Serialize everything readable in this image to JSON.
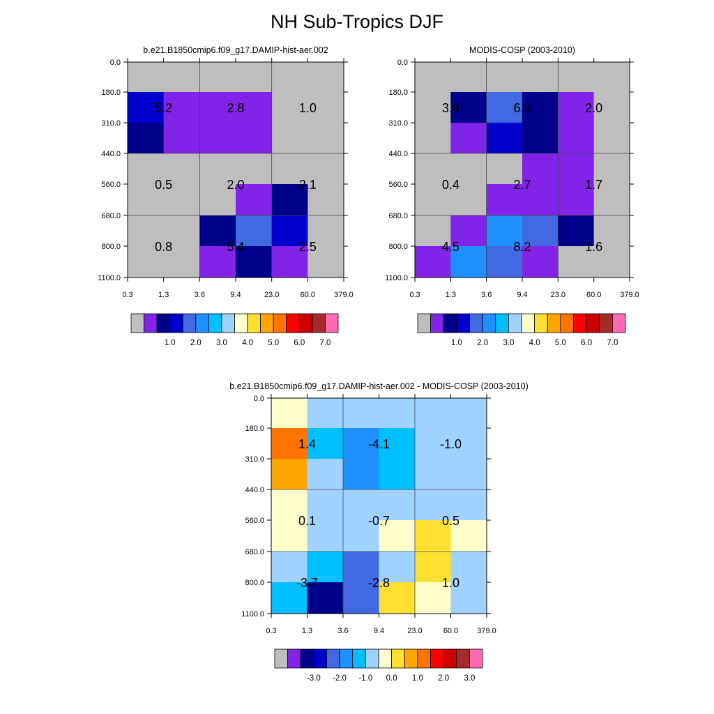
{
  "title": "NH Sub-Tropics DJF",
  "palette": {
    "gray": "#bebebe",
    "c0": "#8224e7",
    "c1": "#00008b",
    "c2": "#0000cd",
    "c3": "#4169e1",
    "c4": "#1e90ff",
    "c5": "#00bfff",
    "c6": "#a0d2ff",
    "c7": "#ffffcc",
    "c8": "#ffe031",
    "c9": "#ffa500",
    "c10": "#ff7400",
    "c11": "#ff0000",
    "c12": "#cd0000",
    "c13": "#a52a2a",
    "c14": "#ff69b4"
  },
  "colorbar_colors": [
    "gray",
    "c0",
    "c1",
    "c2",
    "c3",
    "c4",
    "c5",
    "c6",
    "c7",
    "c8",
    "c9",
    "c10",
    "c11",
    "c12",
    "c13",
    "c14"
  ],
  "chart_data": [
    {
      "type": "heatmap",
      "title": "b.e21.B1850cmip6.f09_g17.DAMIP-hist-aer.002",
      "x_ticks": [
        "0.3",
        "1.3",
        "3.6",
        "9.4",
        "23.0",
        "60.0",
        "379.0"
      ],
      "y_ticks": [
        "0.0",
        "180.0",
        "310.0",
        "440.0",
        "560.0",
        "680.0",
        "800.0",
        "1100.0"
      ],
      "cells": [
        [
          "gray",
          "gray",
          "gray",
          "gray",
          "gray",
          "gray"
        ],
        [
          "c2",
          "c0",
          "c0",
          "c0",
          "gray",
          "gray"
        ],
        [
          "c1",
          "c0",
          "c0",
          "c0",
          "gray",
          "gray"
        ],
        [
          "gray",
          "gray",
          "gray",
          "gray",
          "gray",
          "gray"
        ],
        [
          "gray",
          "gray",
          "gray",
          "c0",
          "c1",
          "gray"
        ],
        [
          "gray",
          "gray",
          "c1",
          "c3",
          "c2",
          "gray"
        ],
        [
          "gray",
          "gray",
          "c0",
          "c1",
          "c0",
          "gray"
        ]
      ],
      "annotations": [
        [
          "5.2",
          "2.8",
          "1.0"
        ],
        [
          "0.5",
          "2.0",
          "2.1"
        ],
        [
          "0.8",
          "5.4",
          "2.5"
        ]
      ],
      "colorbar_labels": [
        "1.0",
        "2.0",
        "3.0",
        "4.0",
        "5.0",
        "6.0",
        "7.0"
      ]
    },
    {
      "type": "heatmap",
      "title": "MODIS-COSP (2003-2010)",
      "x_ticks": [
        "0.3",
        "1.3",
        "3.6",
        "9.4",
        "23.0",
        "60.0",
        "379.0"
      ],
      "y_ticks": [
        "0.0",
        "180.0",
        "310.0",
        "440.0",
        "560.0",
        "680.0",
        "800.0",
        "1100.0"
      ],
      "cells": [
        [
          "gray",
          "gray",
          "gray",
          "gray",
          "gray",
          "gray"
        ],
        [
          "gray",
          "c1",
          "c3",
          "c1",
          "c0",
          "gray"
        ],
        [
          "gray",
          "c0",
          "c2",
          "c1",
          "c0",
          "gray"
        ],
        [
          "gray",
          "gray",
          "gray",
          "c0",
          "c0",
          "gray"
        ],
        [
          "gray",
          "gray",
          "c0",
          "c0",
          "c0",
          "gray"
        ],
        [
          "gray",
          "c0",
          "c4",
          "c3",
          "c1",
          "gray"
        ],
        [
          "c0",
          "c4",
          "c3",
          "c0",
          "gray",
          "gray"
        ]
      ],
      "annotations": [
        [
          "3.8",
          "6.9",
          "2.0"
        ],
        [
          "0.4",
          "2.7",
          "1.7"
        ],
        [
          "4.5",
          "8.2",
          "1.6"
        ]
      ],
      "colorbar_labels": [
        "1.0",
        "2.0",
        "3.0",
        "4.0",
        "5.0",
        "6.0",
        "7.0"
      ]
    },
    {
      "type": "heatmap",
      "title": "b.e21.B1850cmip6.f09_g17.DAMIP-hist-aer.002 - MODIS-COSP (2003-2010)",
      "x_ticks": [
        "0.3",
        "1.3",
        "3.6",
        "9.4",
        "23.0",
        "60.0",
        "379.0"
      ],
      "y_ticks": [
        "0.0",
        "180.0",
        "310.0",
        "440.0",
        "560.0",
        "680.0",
        "800.0",
        "1100.0"
      ],
      "cells": [
        [
          "c7",
          "c6",
          "c6",
          "c6",
          "c6",
          "c6"
        ],
        [
          "c10",
          "c5",
          "c4",
          "c5",
          "c6",
          "c6"
        ],
        [
          "c9",
          "c6",
          "c4",
          "c5",
          "c6",
          "c6"
        ],
        [
          "c7",
          "c6",
          "c6",
          "c6",
          "c6",
          "c6"
        ],
        [
          "c7",
          "c6",
          "c6",
          "c7",
          "c8",
          "c7"
        ],
        [
          "c6",
          "c5",
          "c3",
          "c6",
          "c8",
          "c6"
        ],
        [
          "c5",
          "c1",
          "c3",
          "c8",
          "c7",
          "c6"
        ]
      ],
      "annotations": [
        [
          "1.4",
          "-4.1",
          "-1.0"
        ],
        [
          "0.1",
          "-0.7",
          "0.5"
        ],
        [
          "-3.7",
          "-2.8",
          "1.0"
        ]
      ],
      "colorbar_labels": [
        "-3.0",
        "-2.0",
        "-1.0",
        "0.0",
        "1.0",
        "2.0",
        "3.0"
      ]
    }
  ]
}
